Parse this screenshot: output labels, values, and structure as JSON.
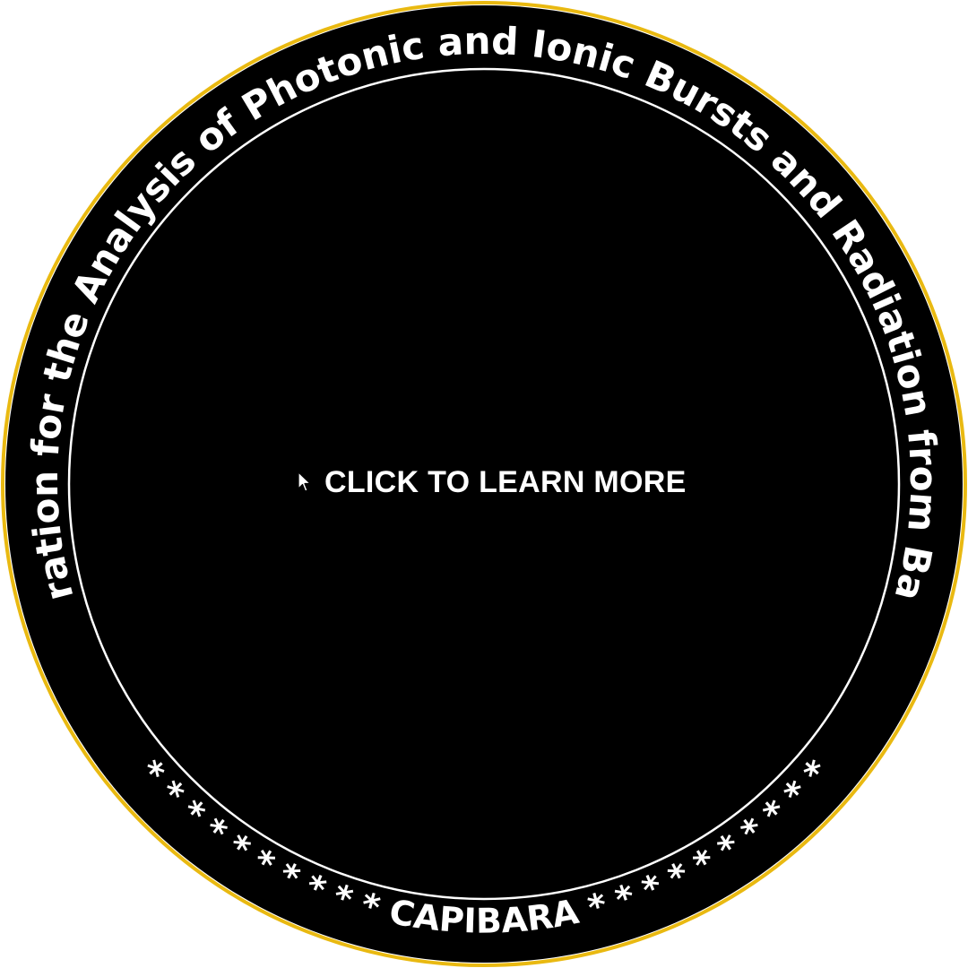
{
  "badge": {
    "outer_ring_color": "#e9b911",
    "background_color": "#000000",
    "inner_ring_color": "#ffffff",
    "text_color": "#ffffff",
    "top_arc_text": "Collaboration for the Analysis of Photonic and Ionic Bursts and Radiation from Barcelona",
    "bottom_arc_text": "* * * * * * * * * * CAPIBARA * * * * * * * * * *"
  },
  "cta": {
    "label": "CLICK TO LEARN MORE",
    "icon": "cursor-arrow-icon"
  }
}
